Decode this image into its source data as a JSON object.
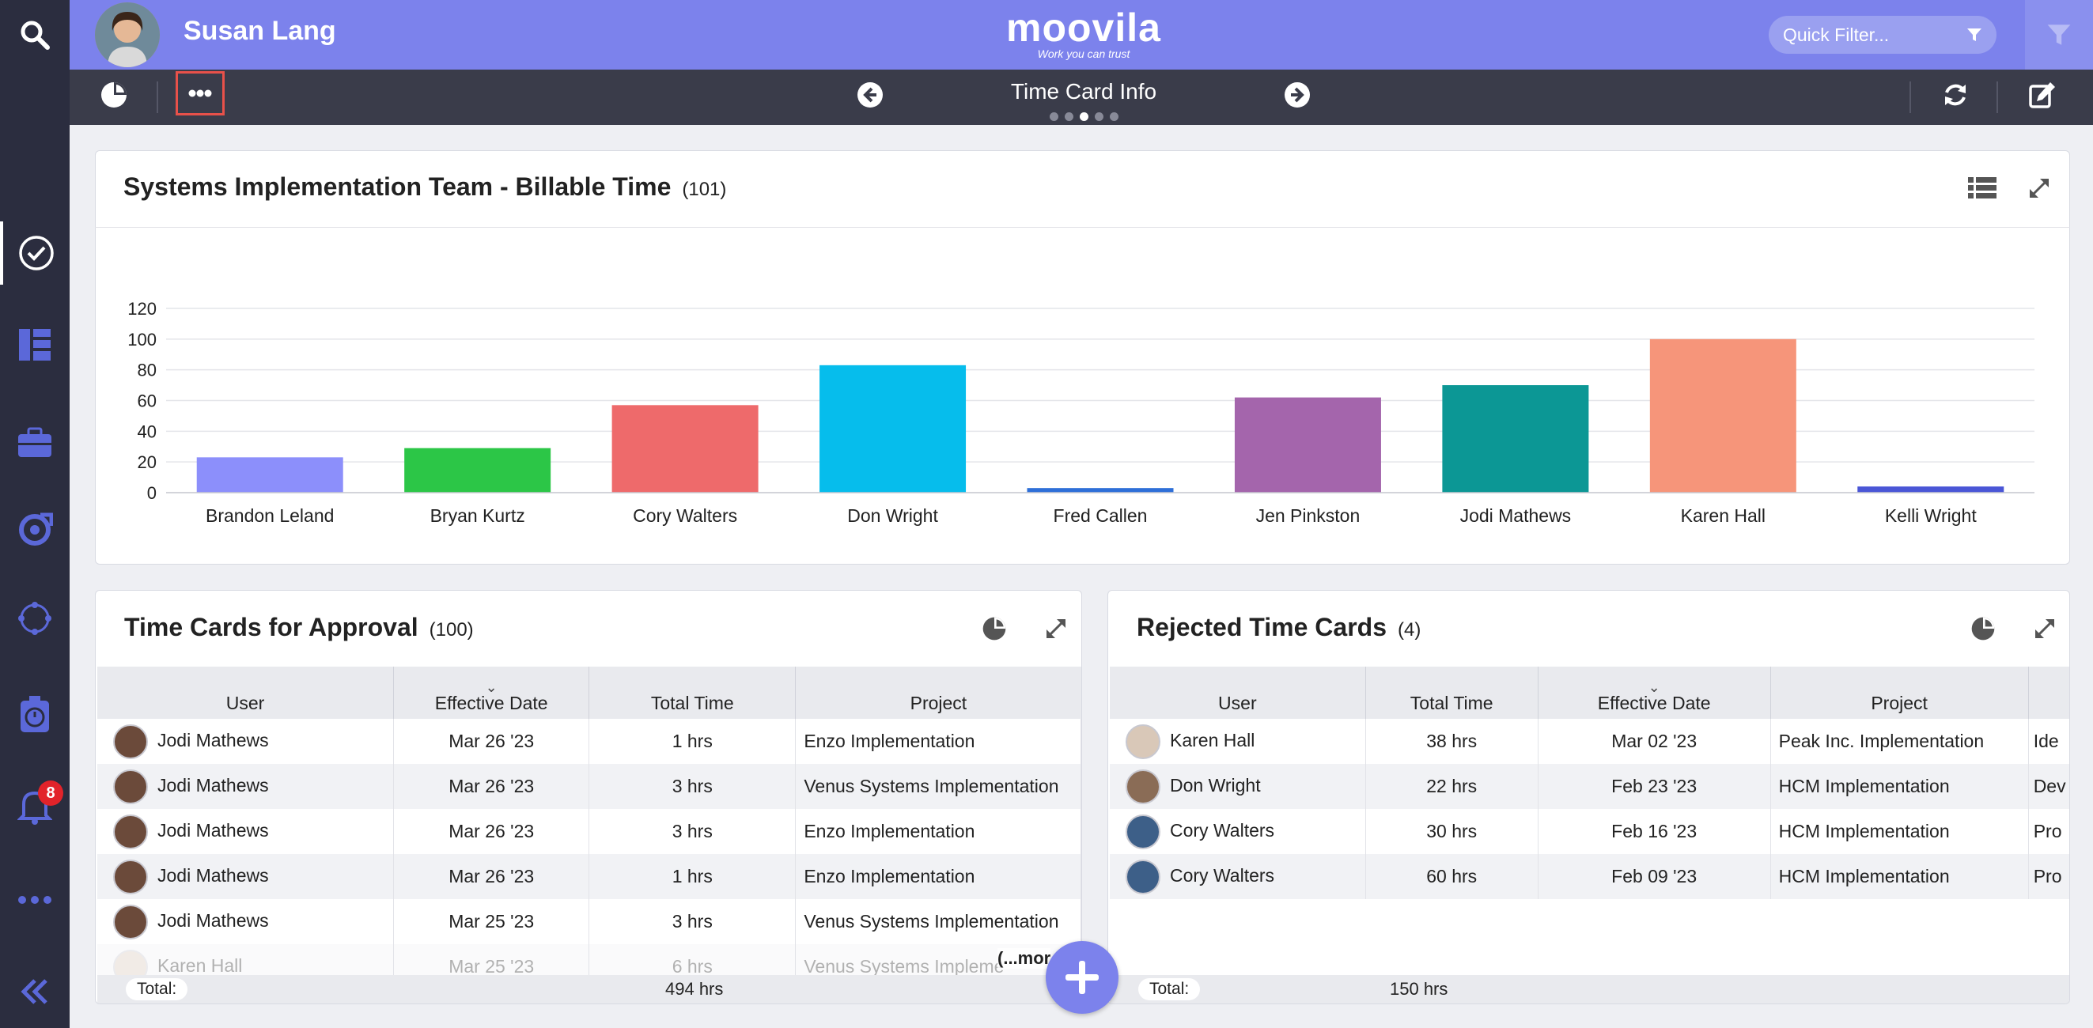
{
  "header": {
    "user_name": "Susan Lang",
    "logo_text": "moovila",
    "logo_tagline": "Work you can trust",
    "quick_filter_placeholder": "Quick Filter..."
  },
  "toolbar": {
    "title": "Time Card Info",
    "page_dots": 5,
    "active_dot": 3
  },
  "sidebar": {
    "notification_count": "8",
    "items": [
      "search-icon",
      "tasks-check-icon",
      "dashboard-icon",
      "portfolio-briefcase-icon",
      "projects-icon",
      "network-icon",
      "timer-icon",
      "notification-bell-icon",
      "more-icon",
      "collapse-icon"
    ]
  },
  "billable_chart": {
    "title": "Systems Implementation Team - Billable Time",
    "count": "(101)"
  },
  "chart_data": {
    "type": "bar",
    "categories": [
      "Brandon Leland",
      "Bryan Kurtz",
      "Cory Walters",
      "Don Wright",
      "Fred Callen",
      "Jen Pinkston",
      "Jodi Mathews",
      "Karen Hall",
      "Kelli Wright"
    ],
    "values": [
      23,
      29,
      57,
      83,
      3,
      62,
      70,
      100,
      4
    ],
    "colors": [
      "#8c8ffb",
      "#2cc647",
      "#ee6a6b",
      "#06bdec",
      "#2e6fd8",
      "#a465ac",
      "#0c9795",
      "#f6957a",
      "#4a56d6"
    ],
    "ylim": [
      0,
      120
    ],
    "yticks": [
      "0",
      "20",
      "40",
      "60",
      "80",
      "100",
      "120"
    ],
    "grid": true
  },
  "approval": {
    "title": "Time Cards for Approval",
    "count": "(100)",
    "columns": [
      "User",
      "Effective Date",
      "Total Time",
      "Project"
    ],
    "rows": [
      {
        "user": "Jodi Mathews",
        "date": "Mar 26 '23",
        "time": "1 hrs",
        "project": "Enzo Implementation"
      },
      {
        "user": "Jodi Mathews",
        "date": "Mar 26 '23",
        "time": "3 hrs",
        "project": "Venus Systems Implementation"
      },
      {
        "user": "Jodi Mathews",
        "date": "Mar 26 '23",
        "time": "3 hrs",
        "project": "Enzo Implementation"
      },
      {
        "user": "Jodi Mathews",
        "date": "Mar 26 '23",
        "time": "1 hrs",
        "project": "Enzo Implementation"
      },
      {
        "user": "Jodi Mathews",
        "date": "Mar 25 '23",
        "time": "3 hrs",
        "project": "Venus Systems Implementation"
      },
      {
        "user": "Karen Hall",
        "date": "Mar 25 '23",
        "time": "6 hrs",
        "project": "Venus Systems Impleme"
      }
    ],
    "more_label": "(...mor",
    "total_label": "Total:",
    "total_value": "494 hrs"
  },
  "rejected": {
    "title": "Rejected Time Cards",
    "count": "(4)",
    "columns": [
      "User",
      "Total Time",
      "Effective Date",
      "Project",
      ""
    ],
    "rows": [
      {
        "user": "Karen Hall",
        "time": "38 hrs",
        "date": "Mar 02 '23",
        "project": "Peak Inc. Implementation",
        "extra": "Ide"
      },
      {
        "user": "Don Wright",
        "time": "22 hrs",
        "date": "Feb 23 '23",
        "project": "HCM Implementation",
        "extra": "Dev"
      },
      {
        "user": "Cory Walters",
        "time": "30 hrs",
        "date": "Feb 16 '23",
        "project": "HCM Implementation",
        "extra": "Pro"
      },
      {
        "user": "Cory Walters",
        "time": "60 hrs",
        "date": "Feb 09 '23",
        "project": "HCM Implementation",
        "extra": "Pro"
      }
    ],
    "total_label": "Total:",
    "total_value": "150 hrs"
  }
}
